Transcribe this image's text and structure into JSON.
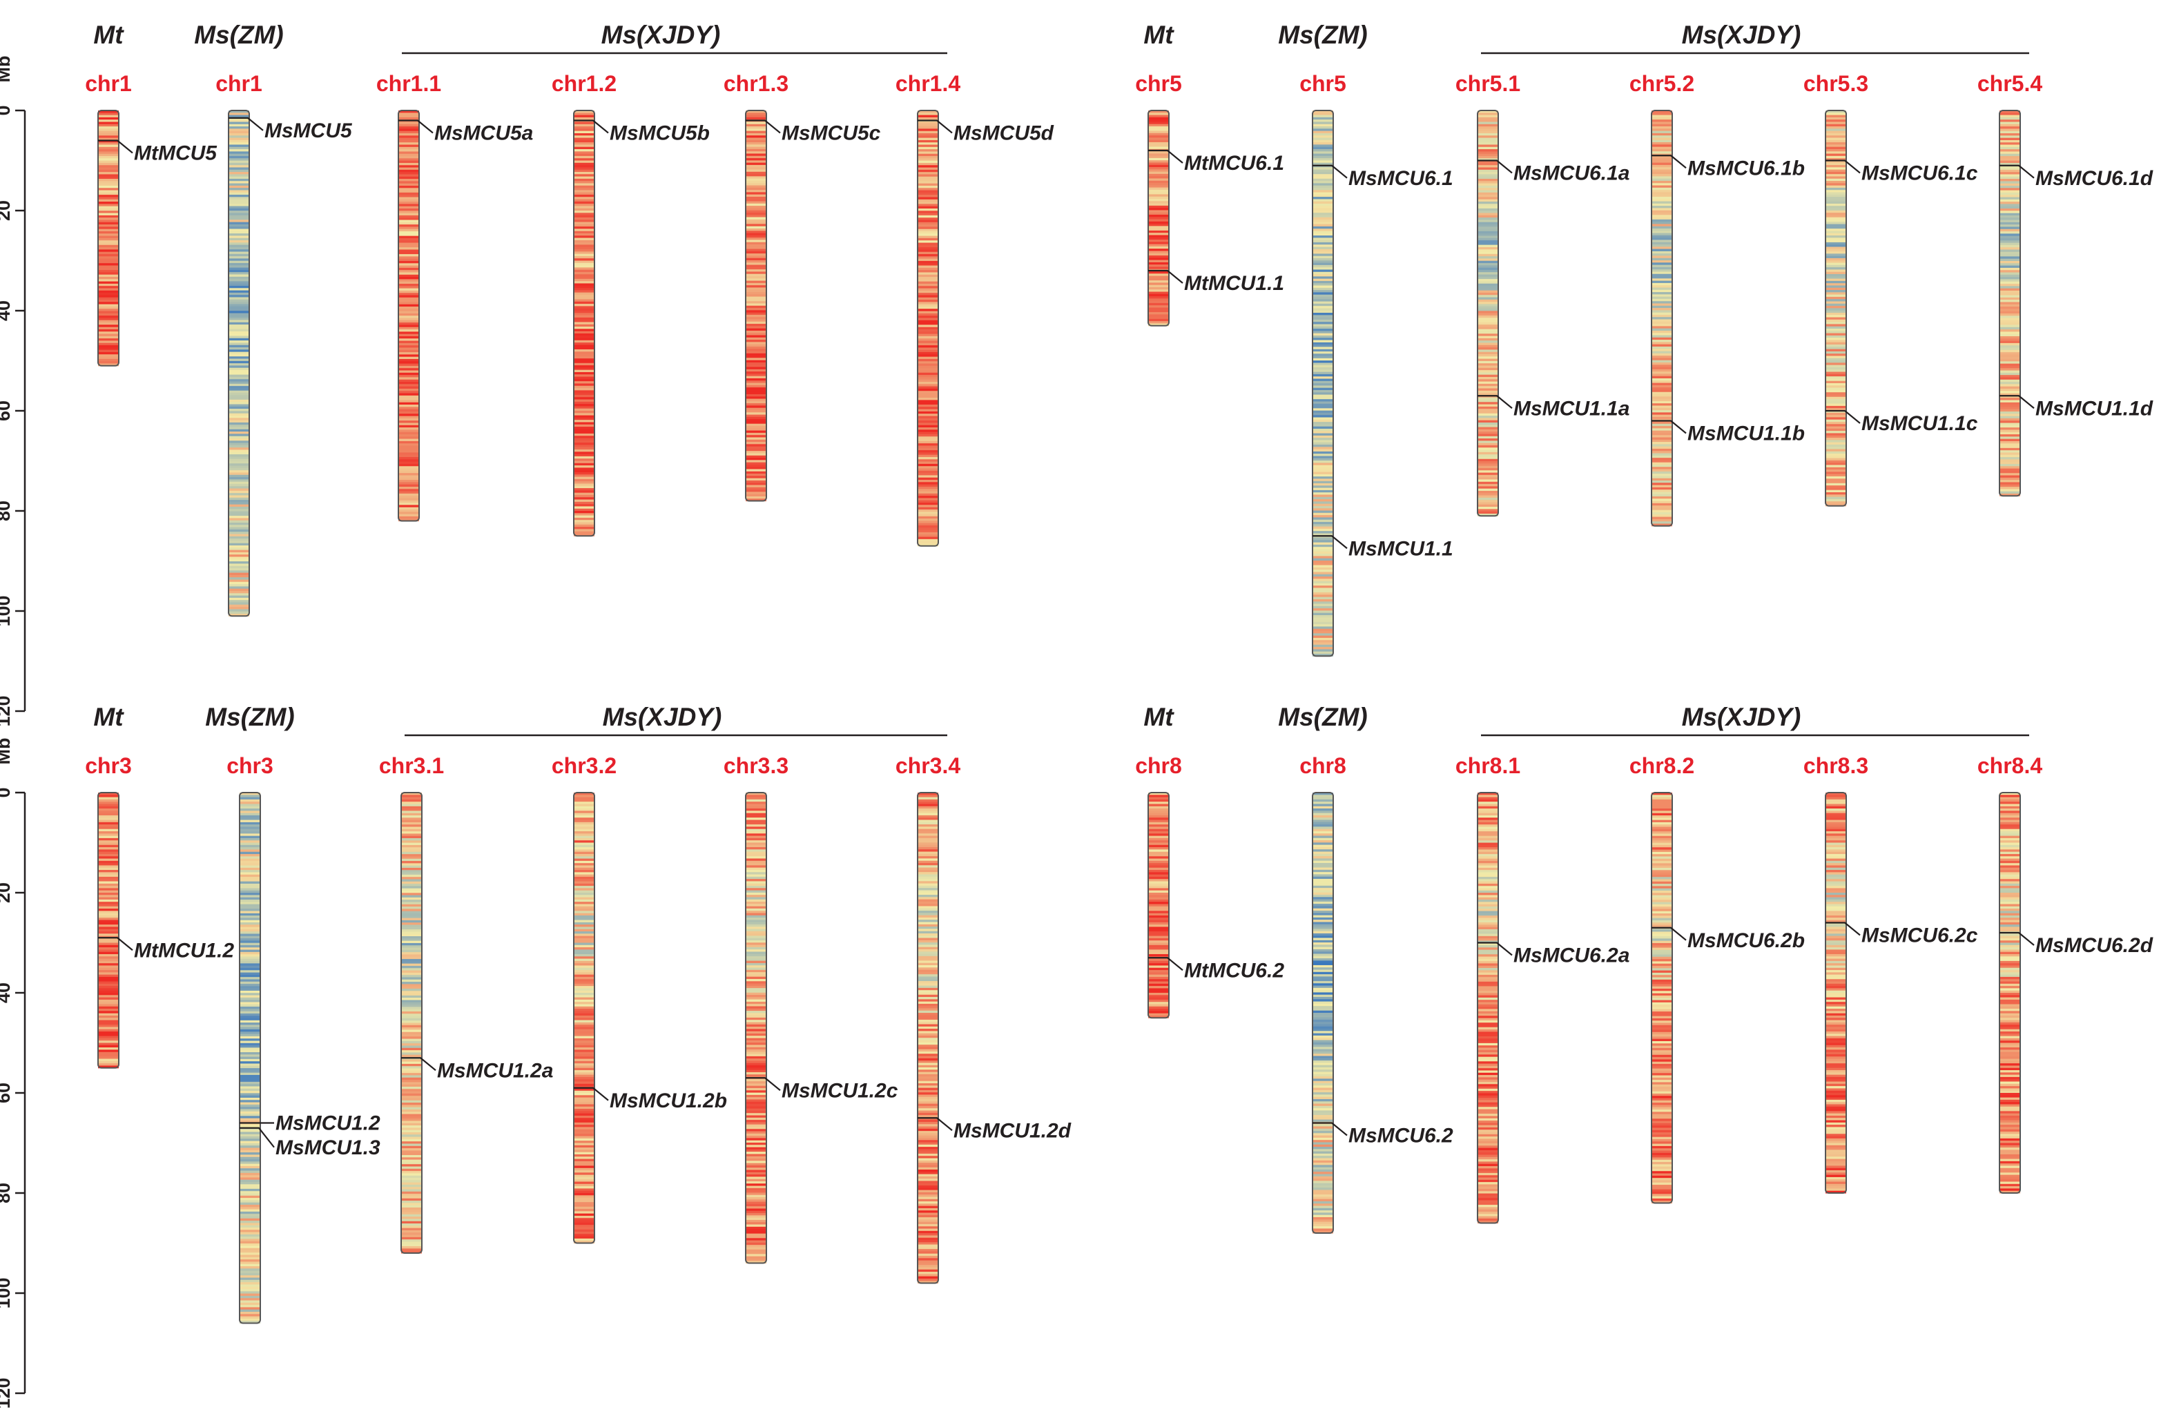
{
  "colors": {
    "text": "#231f20",
    "chr_label": "#e6202b",
    "density_low": "#2c6fbf",
    "density_mid": "#f3eba8",
    "density_high": "#ee2b24"
  },
  "axis": {
    "unit_label": "Mb",
    "ticks": [
      "0",
      "20",
      "40",
      "60",
      "80",
      "100",
      "120"
    ],
    "range": [
      0,
      120
    ]
  },
  "panels": [
    {
      "header": {
        "mt": "Mt",
        "zm": "Ms(ZM)",
        "xjdy": "Ms(XJDY)"
      },
      "chromosomes": [
        {
          "label": "chr1",
          "length": 51,
          "profile": "red",
          "genes": [
            {
              "name": "MtMCU5",
              "pos": 6
            }
          ]
        },
        {
          "label": "chr1",
          "length": 101,
          "profile": "blue",
          "genes": [
            {
              "name": "MsMCU5",
              "pos": 1.5
            }
          ]
        },
        {
          "label": "chr1.1",
          "length": 82,
          "profile": "red",
          "genes": [
            {
              "name": "MsMCU5a",
              "pos": 2
            }
          ]
        },
        {
          "label": "chr1.2",
          "length": 85,
          "profile": "red",
          "genes": [
            {
              "name": "MsMCU5b",
              "pos": 2
            }
          ]
        },
        {
          "label": "chr1.3",
          "length": 78,
          "profile": "red",
          "genes": [
            {
              "name": "MsMCU5c",
              "pos": 2
            }
          ]
        },
        {
          "label": "chr1.4",
          "length": 87,
          "profile": "red",
          "genes": [
            {
              "name": "MsMCU5d",
              "pos": 2
            }
          ]
        }
      ]
    },
    {
      "header": {
        "mt": "Mt",
        "zm": "Ms(ZM)",
        "xjdy": "Ms(XJDY)"
      },
      "chromosomes": [
        {
          "label": "chr5",
          "length": 43,
          "profile": "red",
          "genes": [
            {
              "name": "MtMCU6.1",
              "pos": 8
            },
            {
              "name": "MtMCU1.1",
              "pos": 32
            }
          ]
        },
        {
          "label": "chr5",
          "length": 109,
          "profile": "blue",
          "genes": [
            {
              "name": "MsMCU6.1",
              "pos": 11
            },
            {
              "name": "MsMCU1.1",
              "pos": 85
            }
          ]
        },
        {
          "label": "chr5.1",
          "length": 81,
          "profile": "mixed",
          "genes": [
            {
              "name": "MsMCU6.1a",
              "pos": 10
            },
            {
              "name": "MsMCU1.1a",
              "pos": 57
            }
          ]
        },
        {
          "label": "chr5.2",
          "length": 83,
          "profile": "mixed",
          "genes": [
            {
              "name": "MsMCU6.1b",
              "pos": 9
            },
            {
              "name": "MsMCU1.1b",
              "pos": 62
            }
          ]
        },
        {
          "label": "chr5.3",
          "length": 79,
          "profile": "mixed",
          "genes": [
            {
              "name": "MsMCU6.1c",
              "pos": 10
            },
            {
              "name": "MsMCU1.1c",
              "pos": 60
            }
          ]
        },
        {
          "label": "chr5.4",
          "length": 77,
          "profile": "mixed",
          "genes": [
            {
              "name": "MsMCU6.1d",
              "pos": 11
            },
            {
              "name": "MsMCU1.1d",
              "pos": 57
            }
          ]
        }
      ]
    },
    {
      "header": {
        "mt": "Mt",
        "zm": "Ms(ZM)",
        "xjdy": "Ms(XJDY)"
      },
      "chromosomes": [
        {
          "label": "chr3",
          "length": 55,
          "profile": "red",
          "genes": [
            {
              "name": "MtMCU1.2",
              "pos": 29
            }
          ]
        },
        {
          "label": "chr3",
          "length": 106,
          "profile": "blue",
          "genes": [
            {
              "name": "MsMCU1.2",
              "pos": 66
            },
            {
              "name": "MsMCU1.3",
              "pos": 67
            }
          ]
        },
        {
          "label": "chr3.1",
          "length": 92,
          "profile": "mixed",
          "genes": [
            {
              "name": "MsMCU1.2a",
              "pos": 53
            }
          ]
        },
        {
          "label": "chr3.2",
          "length": 90,
          "profile": "mixedred",
          "genes": [
            {
              "name": "MsMCU1.2b",
              "pos": 59
            }
          ]
        },
        {
          "label": "chr3.3",
          "length": 94,
          "profile": "mixedred",
          "genes": [
            {
              "name": "MsMCU1.2c",
              "pos": 57
            }
          ]
        },
        {
          "label": "chr3.4",
          "length": 98,
          "profile": "mixedred",
          "genes": [
            {
              "name": "MsMCU1.2d",
              "pos": 65
            }
          ]
        }
      ]
    },
    {
      "header": {
        "mt": "Mt",
        "zm": "Ms(ZM)",
        "xjdy": "Ms(XJDY)"
      },
      "chromosomes": [
        {
          "label": "chr8",
          "length": 45,
          "profile": "red",
          "genes": [
            {
              "name": "MtMCU6.2",
              "pos": 33
            }
          ]
        },
        {
          "label": "chr8",
          "length": 88,
          "profile": "blue",
          "genes": [
            {
              "name": "MsMCU6.2",
              "pos": 66
            }
          ]
        },
        {
          "label": "chr8.1",
          "length": 86,
          "profile": "mixedred",
          "genes": [
            {
              "name": "MsMCU6.2a",
              "pos": 30
            }
          ]
        },
        {
          "label": "chr8.2",
          "length": 82,
          "profile": "mixedred",
          "genes": [
            {
              "name": "MsMCU6.2b",
              "pos": 27
            }
          ]
        },
        {
          "label": "chr8.3",
          "length": 80,
          "profile": "mixedred",
          "genes": [
            {
              "name": "MsMCU6.2c",
              "pos": 26
            }
          ]
        },
        {
          "label": "chr8.4",
          "length": 80,
          "profile": "mixedred",
          "genes": [
            {
              "name": "MsMCU6.2d",
              "pos": 28
            }
          ]
        }
      ]
    }
  ]
}
